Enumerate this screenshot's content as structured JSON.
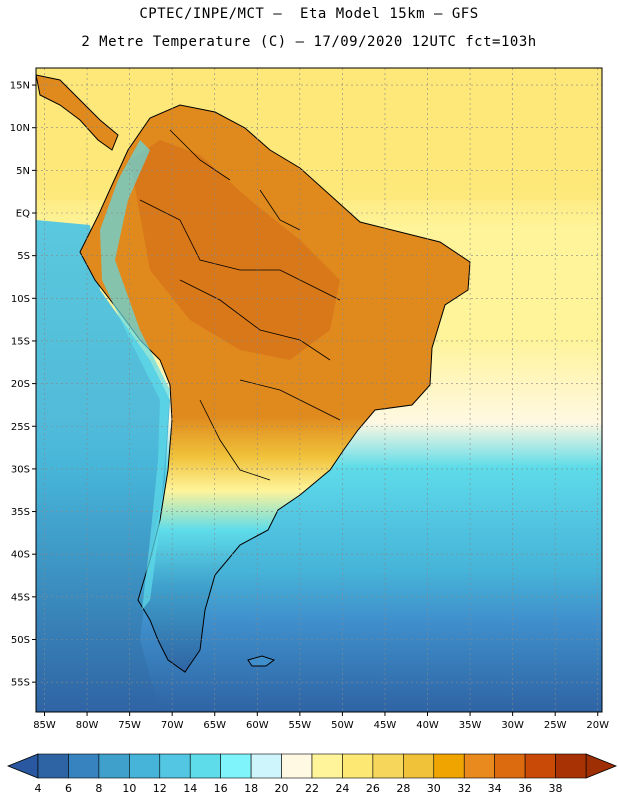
{
  "header": {
    "line1": "CPTEC/INPE/MCT –  Eta Model 15km – GFS",
    "line2": "2 Metre Temperature (C) – 17/09/2020 12UTC fct=103h"
  },
  "map": {
    "extent": {
      "lon_min": -86,
      "lon_max": -19.5,
      "lat_min": -58.5,
      "lat_max": 17
    },
    "lat_labels": [
      {
        "lat": 15,
        "text": "15N"
      },
      {
        "lat": 10,
        "text": "10N"
      },
      {
        "lat": 5,
        "text": "5N"
      },
      {
        "lat": 0,
        "text": "EQ"
      },
      {
        "lat": -5,
        "text": "5S"
      },
      {
        "lat": -10,
        "text": "10S"
      },
      {
        "lat": -15,
        "text": "15S"
      },
      {
        "lat": -20,
        "text": "20S"
      },
      {
        "lat": -25,
        "text": "25S"
      },
      {
        "lat": -30,
        "text": "30S"
      },
      {
        "lat": -35,
        "text": "35S"
      },
      {
        "lat": -40,
        "text": "40S"
      },
      {
        "lat": -45,
        "text": "45S"
      },
      {
        "lat": -50,
        "text": "50S"
      },
      {
        "lat": -55,
        "text": "55S"
      }
    ],
    "lon_labels": [
      {
        "lon": -85,
        "text": "85W"
      },
      {
        "lon": -80,
        "text": "80W"
      },
      {
        "lon": -75,
        "text": "75W"
      },
      {
        "lon": -70,
        "text": "70W"
      },
      {
        "lon": -65,
        "text": "65W"
      },
      {
        "lon": -60,
        "text": "60W"
      },
      {
        "lon": -55,
        "text": "55W"
      },
      {
        "lon": -50,
        "text": "50W"
      },
      {
        "lon": -45,
        "text": "45W"
      },
      {
        "lon": -40,
        "text": "40W"
      },
      {
        "lon": -35,
        "text": "35W"
      },
      {
        "lon": -30,
        "text": "30W"
      },
      {
        "lon": -25,
        "text": "25W"
      },
      {
        "lon": -20,
        "text": "20W"
      }
    ]
  },
  "colorbar": {
    "labels": [
      "4",
      "6",
      "8",
      "10",
      "12",
      "14",
      "16",
      "18",
      "20",
      "22",
      "24",
      "26",
      "28",
      "30",
      "32",
      "34",
      "36",
      "38"
    ],
    "colors": [
      "#2f64a4",
      "#3783bf",
      "#3fa0cc",
      "#46b4d8",
      "#52c6e2",
      "#5edce9",
      "#7ff5fb",
      "#cdf5fb",
      "#fff8e2",
      "#fff49a",
      "#fce873",
      "#f7d75b",
      "#f0c23a",
      "#f0a400",
      "#e88a1e",
      "#dc6a0e",
      "#c84a06",
      "#a83204"
    ],
    "left_arrow": "#2a58a0",
    "right_arrow": "#9e2e04"
  }
}
